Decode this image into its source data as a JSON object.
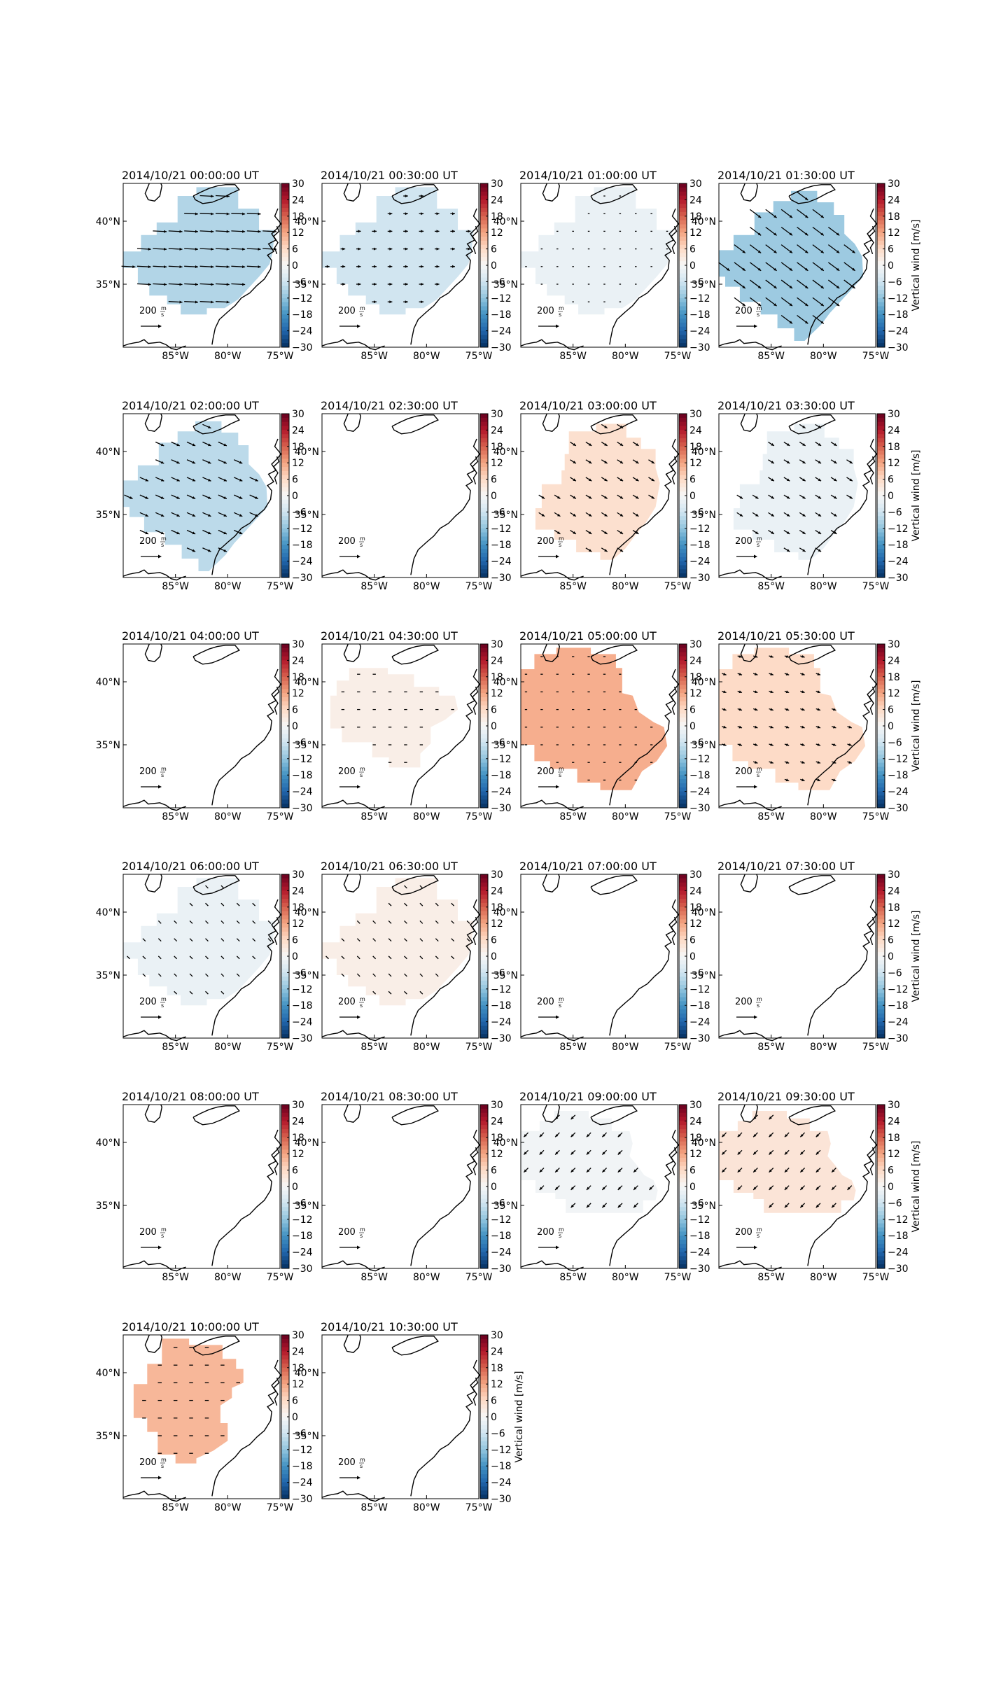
{
  "figure": {
    "x_ticks": [
      "85°W",
      "80°W",
      "75°W"
    ],
    "y_ticks": [
      "40°N",
      "35°N"
    ],
    "colorbar_ticks": [
      "30",
      "24",
      "18",
      "12",
      "6",
      "0",
      "−6",
      "−12",
      "−18",
      "−24",
      "−30"
    ],
    "colorbar_label": "Vertical wind [m/s]",
    "scale_label": "200",
    "scale_unit_num": "m",
    "scale_unit_den": "s"
  },
  "chart_data": [
    {
      "type": "heatmap",
      "title": "2014/10/21 00:00:00 UT",
      "shape": "A",
      "field": -9,
      "wind": {
        "dx": 1,
        "dy": 0.05,
        "mag": 0.9
      },
      "colorbar_label": false,
      "clim": [
        -30,
        30
      ]
    },
    {
      "type": "heatmap",
      "title": "2014/10/21 00:30:00 UT",
      "shape": "A",
      "field": -6,
      "wind": {
        "dx": 1,
        "dy": 0,
        "mag": 0.3
      },
      "colorbar_label": false,
      "clim": [
        -30,
        30
      ]
    },
    {
      "type": "heatmap",
      "title": "2014/10/21 01:00:00 UT",
      "shape": "A",
      "field": -2,
      "wind": {
        "dx": 1,
        "dy": 0,
        "mag": 0.1
      },
      "colorbar_label": false,
      "clim": [
        -30,
        30
      ]
    },
    {
      "type": "heatmap",
      "title": "2014/10/21 01:30:00 UT",
      "shape": "B",
      "field": -11,
      "wind": {
        "dx": 0.8,
        "dy": 0.6,
        "mag": 0.9
      },
      "colorbar_label": true,
      "clim": [
        -30,
        30
      ]
    },
    {
      "type": "heatmap",
      "title": "2014/10/21 02:00:00 UT",
      "shape": "B",
      "field": -8,
      "wind": {
        "dx": 0.9,
        "dy": 0.4,
        "mag": 0.6
      },
      "colorbar_label": false,
      "clim": [
        -30,
        30
      ]
    },
    {
      "type": "heatmap",
      "title": "2014/10/21 02:30:00 UT",
      "shape": "none",
      "field": 0,
      "wind": null,
      "colorbar_label": false,
      "clim": [
        -30,
        30
      ]
    },
    {
      "type": "heatmap",
      "title": "2014/10/21 03:00:00 UT",
      "shape": "C",
      "field": 5,
      "wind": {
        "dx": 0.8,
        "dy": 0.5,
        "mag": 0.45
      },
      "colorbar_label": false,
      "clim": [
        -30,
        30
      ]
    },
    {
      "type": "heatmap",
      "title": "2014/10/21 03:30:00 UT",
      "shape": "C",
      "field": -2,
      "wind": {
        "dx": 0.8,
        "dy": 0.5,
        "mag": 0.45
      },
      "colorbar_label": true,
      "clim": [
        -30,
        30
      ]
    },
    {
      "type": "heatmap",
      "title": "2014/10/21 04:00:00 UT",
      "shape": "none",
      "field": 0,
      "wind": null,
      "colorbar_label": false,
      "clim": [
        -30,
        30
      ]
    },
    {
      "type": "heatmap",
      "title": "2014/10/21 04:30:00 UT",
      "shape": "D",
      "field": 2,
      "wind": {
        "dx": 1,
        "dy": 0,
        "mag": 0.2
      },
      "colorbar_label": false,
      "clim": [
        -30,
        30
      ]
    },
    {
      "type": "heatmap",
      "title": "2014/10/21 05:00:00 UT",
      "shape": "E",
      "field": 11,
      "wind": {
        "dx": 1,
        "dy": 0,
        "mag": 0.15
      },
      "colorbar_label": false,
      "clim": [
        -30,
        30
      ]
    },
    {
      "type": "heatmap",
      "title": "2014/10/21 05:30:00 UT",
      "shape": "E",
      "field": 6,
      "wind": {
        "dx": 0.9,
        "dy": 0.3,
        "mag": 0.3
      },
      "colorbar_label": true,
      "clim": [
        -30,
        30
      ]
    },
    {
      "type": "heatmap",
      "title": "2014/10/21 06:00:00 UT",
      "shape": "A",
      "field": -2,
      "wind": {
        "dx": 0.7,
        "dy": 0.7,
        "mag": 0.25
      },
      "colorbar_label": false,
      "clim": [
        -30,
        30
      ]
    },
    {
      "type": "heatmap",
      "title": "2014/10/21 06:30:00 UT",
      "shape": "A",
      "field": 2,
      "wind": {
        "dx": 0.7,
        "dy": 0.7,
        "mag": 0.25
      },
      "colorbar_label": false,
      "clim": [
        -30,
        30
      ]
    },
    {
      "type": "heatmap",
      "title": "2014/10/21 07:00:00 UT",
      "shape": "none",
      "field": 0,
      "wind": null,
      "colorbar_label": false,
      "clim": [
        -30,
        30
      ]
    },
    {
      "type": "heatmap",
      "title": "2014/10/21 07:30:00 UT",
      "shape": "none",
      "field": 0,
      "wind": null,
      "colorbar_label": true,
      "clim": [
        -30,
        30
      ]
    },
    {
      "type": "heatmap",
      "title": "2014/10/21 08:00:00 UT",
      "shape": "none",
      "field": 0,
      "wind": null,
      "colorbar_label": false,
      "clim": [
        -30,
        30
      ]
    },
    {
      "type": "heatmap",
      "title": "2014/10/21 08:30:00 UT",
      "shape": "none",
      "field": 0,
      "wind": null,
      "colorbar_label": false,
      "clim": [
        -30,
        30
      ]
    },
    {
      "type": "heatmap",
      "title": "2014/10/21 09:00:00 UT",
      "shape": "F",
      "field": -1,
      "wind": {
        "dx": -0.7,
        "dy": 0.7,
        "mag": 0.4
      },
      "colorbar_label": false,
      "clim": [
        -30,
        30
      ]
    },
    {
      "type": "heatmap",
      "title": "2014/10/21 09:30:00 UT",
      "shape": "F",
      "field": 4,
      "wind": {
        "dx": -0.7,
        "dy": 0.7,
        "mag": 0.4
      },
      "colorbar_label": true,
      "clim": [
        -30,
        30
      ]
    },
    {
      "type": "heatmap",
      "title": "2014/10/21 10:00:00 UT",
      "shape": "G",
      "field": 10,
      "wind": {
        "dx": 1,
        "dy": 0,
        "mag": 0.25
      },
      "colorbar_label": false,
      "clim": [
        -30,
        30
      ]
    },
    {
      "type": "heatmap",
      "title": "2014/10/21 10:30:00 UT",
      "shape": "none",
      "field": 0,
      "wind": null,
      "colorbar_label": true,
      "clim": [
        -30,
        30
      ]
    }
  ]
}
